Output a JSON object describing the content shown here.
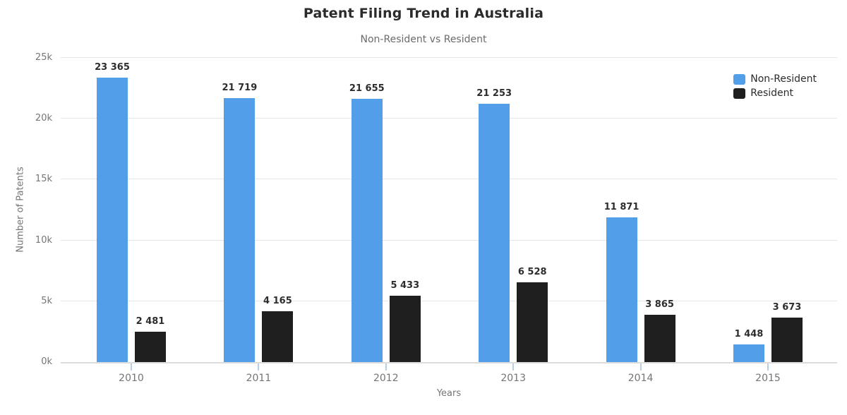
{
  "title": "Patent Filing Trend in Australia",
  "subtitle": "Non-Resident vs Resident",
  "chart_data": {
    "type": "bar",
    "title": "Patent Filing Trend in Australia",
    "subtitle": "Non-Resident vs Resident",
    "categories": [
      "2010",
      "2011",
      "2012",
      "2013",
      "2014",
      "2015"
    ],
    "series": [
      {
        "name": "Non-Resident",
        "color": "#539ee9",
        "values": [
          23365,
          21719,
          21655,
          21253,
          11871,
          1448
        ],
        "value_labels": [
          "23 365",
          "21 719",
          "21 655",
          "21 253",
          "11 871",
          "1 448"
        ]
      },
      {
        "name": "Resident",
        "color": "#1f1f1f",
        "values": [
          2481,
          4165,
          5433,
          6528,
          3865,
          3673
        ],
        "value_labels": [
          "2 481",
          "4 165",
          "5 433",
          "6 528",
          "3 865",
          "3 673"
        ]
      }
    ],
    "xlabel": "Years",
    "ylabel": "Number of Patents",
    "ylim": [
      0,
      25000
    ],
    "yticks": [
      {
        "value": 0,
        "label": "0k"
      },
      {
        "value": 5000,
        "label": "5k"
      },
      {
        "value": 10000,
        "label": "10k"
      },
      {
        "value": 15000,
        "label": "15k"
      },
      {
        "value": 20000,
        "label": "20k"
      },
      {
        "value": 25000,
        "label": "25k"
      }
    ],
    "grid": true,
    "legend_position": "top-right"
  }
}
